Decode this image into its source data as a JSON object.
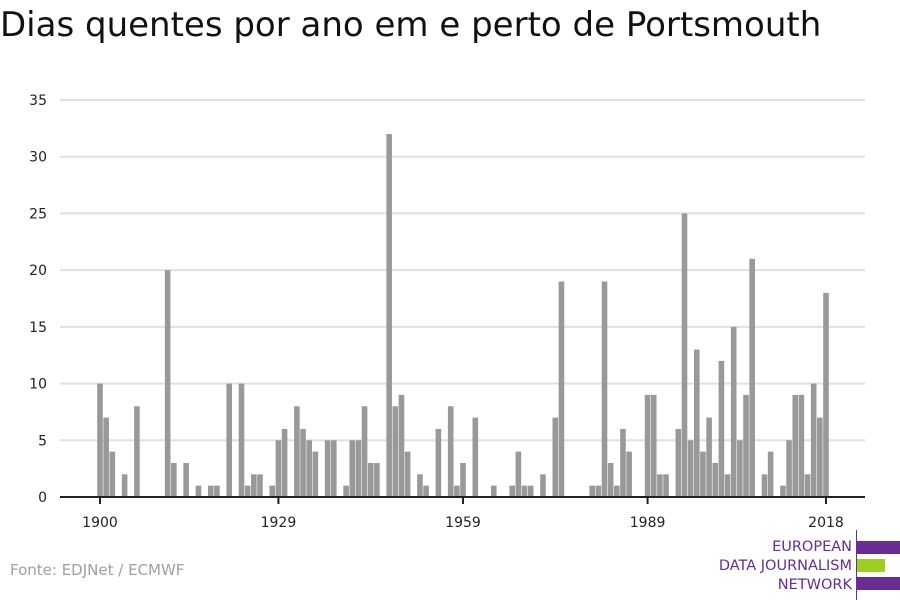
{
  "chart_data": {
    "type": "bar",
    "title": "Dias quentes por ano em e perto de Portsmouth",
    "xlabel": "",
    "ylabel": "",
    "ylim": [
      0,
      35
    ],
    "yticks": [
      "0",
      "5",
      "10",
      "15",
      "20",
      "25",
      "30",
      "35"
    ],
    "xticks": [
      "1900",
      "1929",
      "1959",
      "1989",
      "2018"
    ],
    "grid": true,
    "x_start": 1900,
    "x_end": 2018,
    "values": [
      10,
      7,
      4,
      0,
      2,
      0,
      8,
      0,
      0,
      0,
      0,
      20,
      3,
      0,
      3,
      0,
      1,
      0,
      1,
      1,
      0,
      10,
      0,
      10,
      1,
      2,
      2,
      0,
      1,
      5,
      6,
      0,
      8,
      6,
      5,
      4,
      0,
      5,
      5,
      0,
      1,
      5,
      5,
      8,
      3,
      3,
      0,
      32,
      8,
      9,
      4,
      0,
      2,
      1,
      0,
      6,
      0,
      8,
      1,
      3,
      0,
      7,
      0,
      0,
      1,
      0,
      0,
      1,
      4,
      1,
      1,
      0,
      2,
      0,
      7,
      19,
      0,
      0,
      0,
      0,
      1,
      1,
      19,
      3,
      1,
      6,
      4,
      0,
      0,
      9,
      9,
      2,
      2,
      0,
      6,
      25,
      5,
      13,
      4,
      7,
      3,
      12,
      2,
      15,
      5,
      9,
      21,
      0,
      2,
      4,
      0,
      1,
      5,
      9,
      9,
      2,
      10,
      7,
      18
    ],
    "bar_color": "#999999"
  },
  "source": "Fonte: EDJNet / ECMWF",
  "logo": {
    "lines": [
      "EUROPEAN",
      "DATA JOURNALISM",
      "NETWORK"
    ],
    "purple": "#6a2c91",
    "green": "#9bd020"
  }
}
